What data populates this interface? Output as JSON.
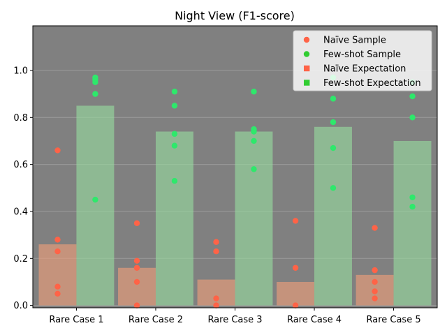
{
  "chart_data": {
    "type": "bar",
    "title": "Night View (F1-score)",
    "xlabel": "",
    "ylabel": "",
    "ylim": [
      -0.01,
      1.19
    ],
    "yticks": [
      "0.0",
      "0.2",
      "0.4",
      "0.6",
      "0.8",
      "1.0"
    ],
    "grid": true,
    "legend_position": "top-right",
    "categories": [
      "Rare Case 1",
      "Rare Case 2",
      "Rare Case 3",
      "Rare Case 4",
      "Rare Case 5"
    ],
    "series": [
      {
        "name": "Naïve Expectation",
        "kind": "bar",
        "color": "#f4a07a",
        "values": [
          0.26,
          0.16,
          0.11,
          0.1,
          0.13
        ]
      },
      {
        "name": "Few-shot Expectation",
        "kind": "bar",
        "color": "#98e0a0",
        "values": [
          0.85,
          0.74,
          0.74,
          0.76,
          0.7
        ]
      }
    ],
    "samples": [
      {
        "name": "Naïve Sample",
        "color": "#ff6347",
        "points": [
          [
            0.66,
            0.28,
            0.23,
            0.08,
            0.05
          ],
          [
            0.35,
            0.19,
            0.16,
            0.1,
            0.0
          ],
          [
            0.27,
            0.23,
            0.03,
            0.0
          ],
          [
            0.36,
            0.16,
            0.0
          ],
          [
            0.33,
            0.15,
            0.1,
            0.06,
            0.03
          ]
        ]
      },
      {
        "name": "Few-shot Sample",
        "color": "#2ee86b",
        "points": [
          [
            0.97,
            0.96,
            0.95,
            0.9,
            0.45
          ],
          [
            0.91,
            0.85,
            0.73,
            0.68,
            0.53
          ],
          [
            0.91,
            0.75,
            0.74,
            0.7,
            0.58
          ],
          [
            0.97,
            0.88,
            0.78,
            0.67,
            0.5
          ],
          [
            0.95,
            0.89,
            0.8,
            0.46,
            0.42
          ]
        ]
      }
    ],
    "legend": [
      {
        "label": "Naïve Sample",
        "marker": "circle",
        "color": "#ff6347"
      },
      {
        "label": "Few-shot Sample",
        "marker": "circle",
        "color": "#32cd32"
      },
      {
        "label": "Naïve Expectation",
        "marker": "square",
        "color": "#ff6347"
      },
      {
        "label": "Few-shot Expectation",
        "marker": "square",
        "color": "#32cd32"
      }
    ],
    "colors": {
      "plot_background": "#808080",
      "grid": "#9a9a9a"
    }
  }
}
